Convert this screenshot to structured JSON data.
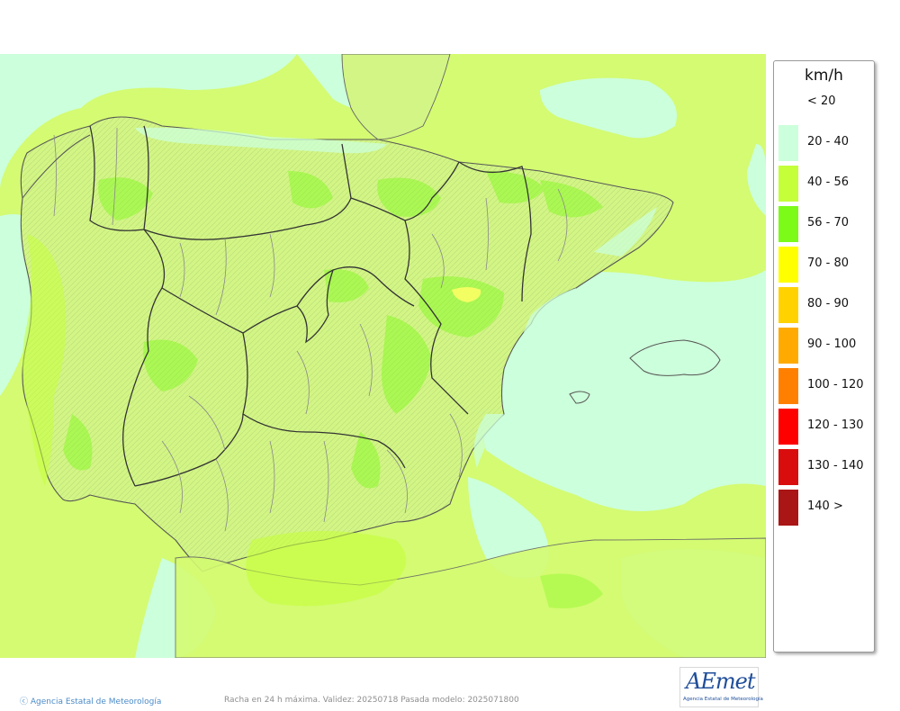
{
  "legend": {
    "unit": "km/h",
    "classes": [
      {
        "label": "< 20",
        "color": "#ffffff"
      },
      {
        "label": "20 - 40",
        "color": "#ccffdb"
      },
      {
        "label": "40 - 56",
        "color": "#c4ff3a"
      },
      {
        "label": "56 - 70",
        "color": "#7cfa18"
      },
      {
        "label": "70 - 80",
        "color": "#ffff00"
      },
      {
        "label": "80 - 90",
        "color": "#ffd200"
      },
      {
        "label": "90 - 100",
        "color": "#ffaa00"
      },
      {
        "label": "100 - 120",
        "color": "#ff8000"
      },
      {
        "label": "120 - 130",
        "color": "#ff0000"
      },
      {
        "label": "130 - 140",
        "color": "#d90d0d"
      },
      {
        "label": "140 >",
        "color": "#aa1515"
      }
    ]
  },
  "map": {
    "credit": "Agencia Estatal de Meteorología",
    "caption": "Racha en 24 h máxima. Validez: 20250718 Pasada modelo: 2025071800",
    "logo_text": "AEmet",
    "logo_subtext": "Agencia Estatal de Meteorología",
    "colors": {
      "sea_low": "#ccffdb",
      "land_mid": "#d2f585",
      "gust_40_56": "#c4ff3a",
      "gust_56_70": "#7cfa18",
      "gust_70_80": "#ffff00"
    }
  }
}
